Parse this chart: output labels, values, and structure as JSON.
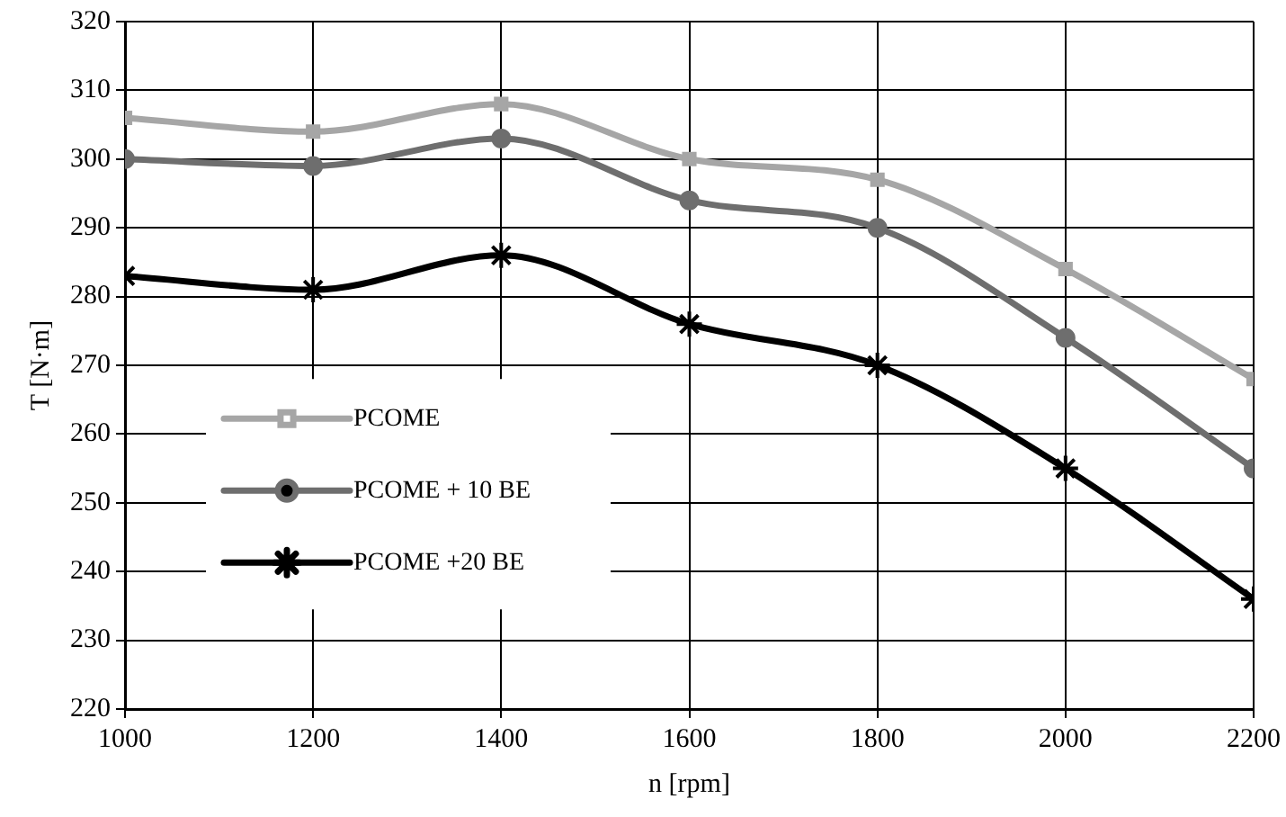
{
  "chart_data": {
    "type": "line",
    "xlabel": "n [rpm]",
    "ylabel": "T [N·m]",
    "x": [
      1000,
      1200,
      1400,
      1600,
      1800,
      2000,
      2200
    ],
    "xlim": [
      1000,
      2200
    ],
    "xticks": [
      1000,
      1200,
      1400,
      1600,
      1800,
      2000,
      2200
    ],
    "ylim": [
      220,
      320
    ],
    "yticks": [
      220,
      230,
      240,
      250,
      260,
      270,
      280,
      290,
      300,
      310,
      320
    ],
    "grid": true,
    "legend": "left",
    "line_style": "solid",
    "series": [
      {
        "name": "PCOME",
        "color": "#a6a6a6",
        "marker": "square",
        "values": [
          306,
          304,
          308,
          300,
          297,
          284,
          268
        ]
      },
      {
        "name": "PCOME + 10 BE",
        "color": "#6e6e6e",
        "marker": "circle",
        "values": [
          300,
          299,
          303,
          294,
          290,
          274,
          255
        ]
      },
      {
        "name": "PCOME +20 BE",
        "color": "#000000",
        "marker": "cross",
        "values": [
          283,
          281,
          286,
          276,
          270,
          255,
          236
        ]
      }
    ]
  }
}
